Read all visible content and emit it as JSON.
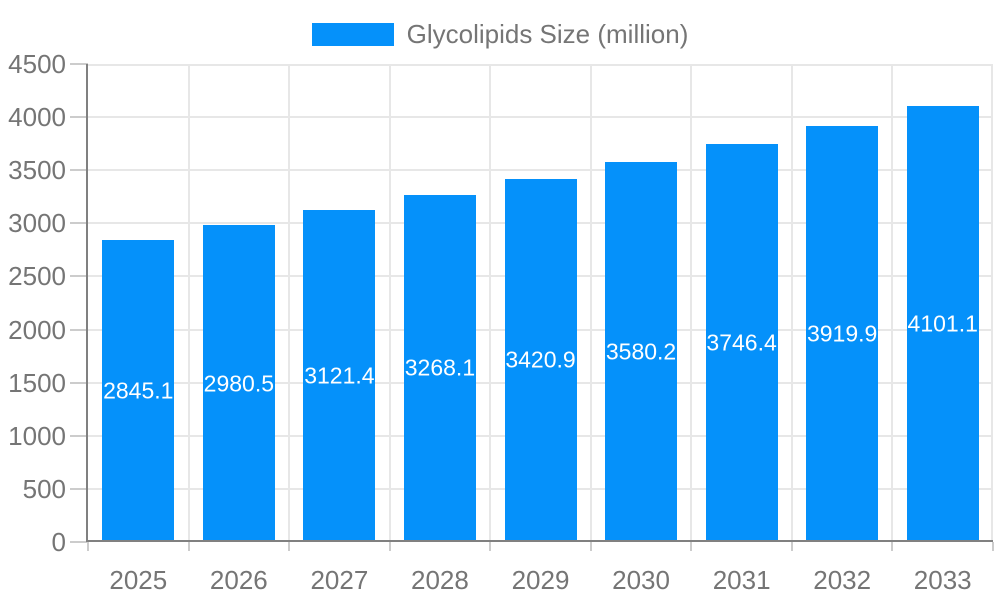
{
  "page": {
    "background": "#ffffff"
  },
  "legend": {
    "label": "Glycolipids Size (million)"
  },
  "chart_data": {
    "type": "bar",
    "title": "Glycolipids Size (million)",
    "series_name": "Glycolipids Size (million)",
    "categories": [
      "2025",
      "2026",
      "2027",
      "2028",
      "2029",
      "2030",
      "2031",
      "2032",
      "2033"
    ],
    "values": [
      2845.1,
      2980.5,
      3121.4,
      3268.1,
      3420.9,
      3580.2,
      3746.4,
      3919.9,
      4101.1
    ],
    "xlabel": "",
    "ylabel": "",
    "ylim": [
      0,
      4500
    ],
    "ytick_step": 500,
    "ytick_labels": [
      "0",
      "500",
      "1000",
      "1500",
      "2000",
      "2500",
      "3000",
      "3500",
      "4000",
      "4500"
    ],
    "grid": true,
    "legend_position": "top",
    "colors": {
      "bar": "#0591fa",
      "value_label": "#ffffff",
      "axis_text": "#757575",
      "grid_line": "#e7e7e7",
      "tick": "#cccccc",
      "axis_line": "#808080"
    }
  }
}
